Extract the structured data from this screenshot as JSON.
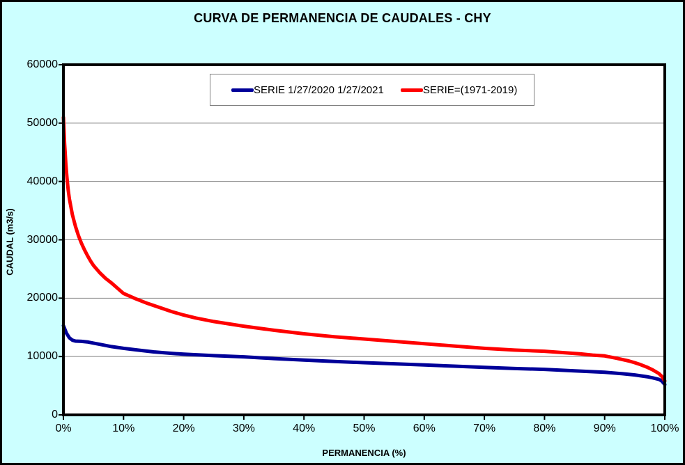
{
  "title": "CURVA DE PERMANENCIA DE CAUDALES - CHY",
  "colors": {
    "background": "#CCFFFF",
    "plot_background": "#FFFFFF",
    "grid": "#848484",
    "frame": "#000000",
    "series_navy": "#000099",
    "series_red": "#FF0000"
  },
  "chart_data": {
    "type": "line",
    "title": "CURVA DE PERMANENCIA DE CAUDALES - CHY",
    "xlabel": "PERMANENCIA (%)",
    "ylabel": "CAUDAL (m3/s)",
    "xlim": [
      0,
      100
    ],
    "ylim": [
      0,
      60000
    ],
    "x_ticks": [
      "0%",
      "10%",
      "20%",
      "30%",
      "40%",
      "50%",
      "60%",
      "70%",
      "80%",
      "90%",
      "100%"
    ],
    "y_ticks": [
      0,
      10000,
      20000,
      30000,
      40000,
      50000,
      60000
    ],
    "grid": "horizontal-only",
    "legend_position": "top-center-inside",
    "series": [
      {
        "name": "SERIE 1/27/2020 1/27/2021",
        "color": "#000099",
        "points": [
          [
            0,
            15300
          ],
          [
            0.5,
            14000
          ],
          [
            1,
            13200
          ],
          [
            1.5,
            12800
          ],
          [
            2,
            12650
          ],
          [
            3,
            12600
          ],
          [
            4,
            12500
          ],
          [
            5,
            12300
          ],
          [
            6,
            12100
          ],
          [
            8,
            11700
          ],
          [
            10,
            11400
          ],
          [
            12,
            11150
          ],
          [
            15,
            10800
          ],
          [
            18,
            10550
          ],
          [
            20,
            10400
          ],
          [
            25,
            10150
          ],
          [
            30,
            9950
          ],
          [
            35,
            9650
          ],
          [
            40,
            9400
          ],
          [
            45,
            9150
          ],
          [
            50,
            8950
          ],
          [
            55,
            8750
          ],
          [
            60,
            8550
          ],
          [
            65,
            8350
          ],
          [
            70,
            8150
          ],
          [
            75,
            7950
          ],
          [
            80,
            7800
          ],
          [
            85,
            7550
          ],
          [
            90,
            7300
          ],
          [
            93,
            7050
          ],
          [
            95,
            6850
          ],
          [
            97,
            6550
          ],
          [
            98,
            6350
          ],
          [
            99,
            6100
          ],
          [
            99.5,
            5800
          ],
          [
            100,
            5200
          ]
        ]
      },
      {
        "name": "SERIE=(1971-2019)",
        "color": "#FF0000",
        "points": [
          [
            0,
            51000
          ],
          [
            0.2,
            46500
          ],
          [
            0.4,
            43000
          ],
          [
            0.6,
            40500
          ],
          [
            0.8,
            38500
          ],
          [
            1,
            37000
          ],
          [
            1.5,
            34300
          ],
          [
            2,
            32300
          ],
          [
            2.5,
            30700
          ],
          [
            3,
            29400
          ],
          [
            3.5,
            28300
          ],
          [
            4,
            27300
          ],
          [
            4.5,
            26400
          ],
          [
            5,
            25600
          ],
          [
            6,
            24400
          ],
          [
            7,
            23400
          ],
          [
            8,
            22600
          ],
          [
            9,
            21700
          ],
          [
            10,
            20800
          ],
          [
            12,
            19900
          ],
          [
            14,
            19100
          ],
          [
            16,
            18400
          ],
          [
            18,
            17700
          ],
          [
            20,
            17100
          ],
          [
            22,
            16600
          ],
          [
            25,
            16000
          ],
          [
            30,
            15200
          ],
          [
            35,
            14500
          ],
          [
            40,
            13900
          ],
          [
            45,
            13400
          ],
          [
            50,
            13000
          ],
          [
            55,
            12600
          ],
          [
            60,
            12200
          ],
          [
            65,
            11800
          ],
          [
            70,
            11400
          ],
          [
            75,
            11100
          ],
          [
            80,
            10900
          ],
          [
            82,
            10750
          ],
          [
            84,
            10600
          ],
          [
            86,
            10450
          ],
          [
            88,
            10250
          ],
          [
            90,
            10100
          ],
          [
            92,
            9700
          ],
          [
            94,
            9250
          ],
          [
            95,
            8950
          ],
          [
            96,
            8600
          ],
          [
            97,
            8200
          ],
          [
            98,
            7700
          ],
          [
            99,
            7100
          ],
          [
            99.5,
            6600
          ],
          [
            100,
            5800
          ]
        ]
      }
    ]
  }
}
